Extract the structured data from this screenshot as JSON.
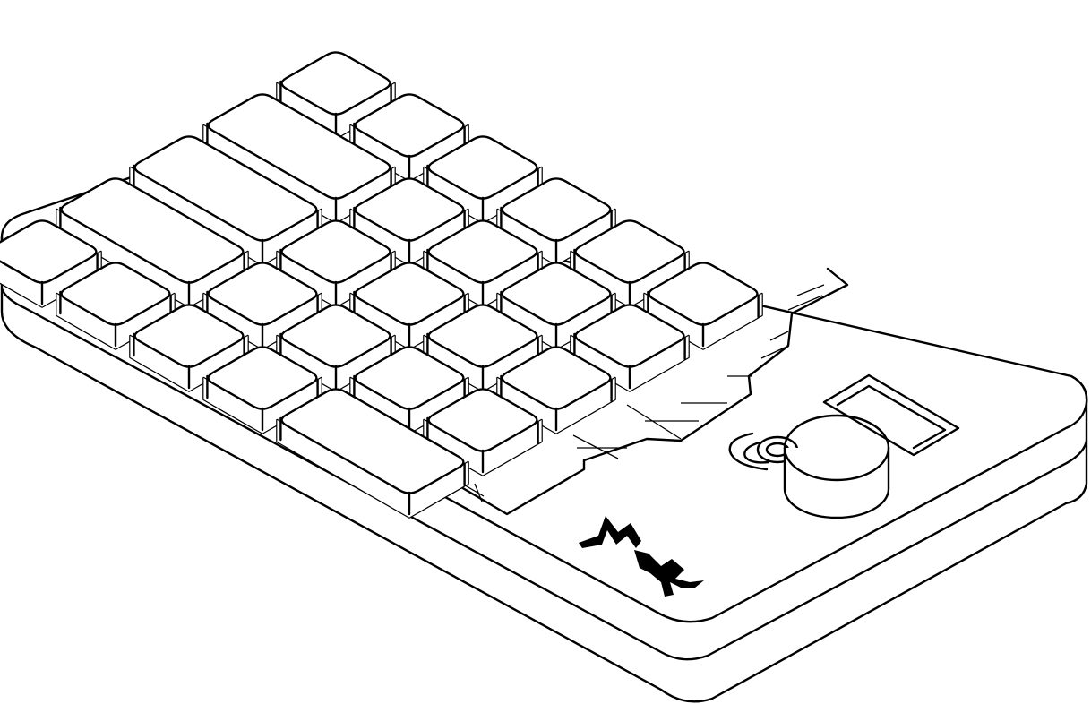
{
  "device": {
    "name": "macropad",
    "line_color": "#000000",
    "background_color": "#ffffff",
    "logo": {
      "icon": "mx-logo-icon",
      "lettering": "Mx"
    },
    "grid_layout": {
      "rows": 5,
      "columns": 6,
      "keys": [
        [
          1,
          1,
          1,
          1,
          1,
          1
        ],
        [
          2,
          1,
          1,
          1,
          1
        ],
        [
          2,
          1,
          1,
          1,
          1
        ],
        [
          2,
          1,
          1,
          1,
          1
        ],
        [
          1,
          1,
          1,
          1,
          2
        ]
      ]
    },
    "parts": [
      "case",
      "key-plate",
      "keycaps",
      "rotary-knob",
      "oled-display-window",
      "button"
    ]
  }
}
